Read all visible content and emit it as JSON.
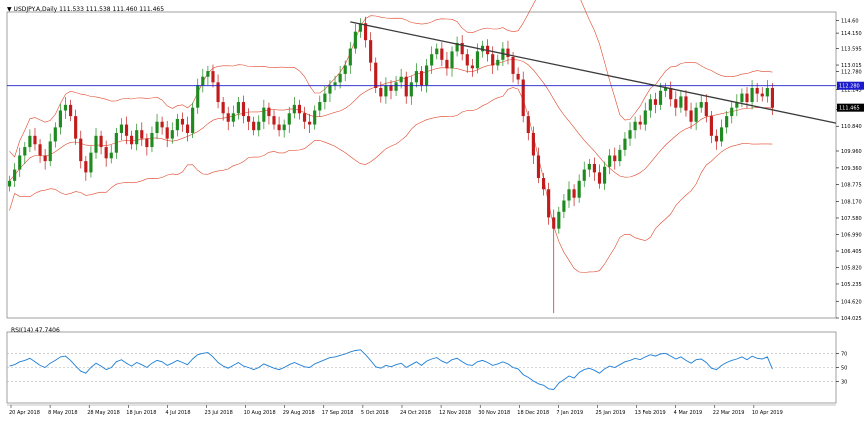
{
  "header": {
    "symbol_marker": "▼",
    "title": "USDJPY.A,Daily  111.533 111.538 111.460 111.465"
  },
  "colors": {
    "background": "#ffffff",
    "bull_candle": "#1f8a1f",
    "bear_candle": "#c11b1b",
    "bollinger": "#e0472a",
    "trendline": "#3b3b3b",
    "horizontal_line": "#1b1bcc",
    "rsi_line": "#1e7fd6",
    "grid": "#b0b0b0",
    "price_label_bg_current": "#000000",
    "price_label_bg_line": "#1b1bcc"
  },
  "chart_data": [
    {
      "type": "candlestick",
      "symbol": "USDJPY.A",
      "timeframe": "Daily",
      "ohlc_header": {
        "open": 111.533,
        "high": 111.538,
        "low": 111.46,
        "close": 111.465
      },
      "price_ticks": [
        "114.60",
        "114.150",
        "113.595",
        "113.015",
        "112.780",
        "112.145",
        "111.435",
        "110.840",
        "109.960",
        "109.360",
        "108.775",
        "108.170",
        "107.580",
        "106.990",
        "106.405",
        "105.820",
        "105.235",
        "104.620",
        "104.025"
      ],
      "price_tick_values": [
        114.6,
        114.15,
        113.595,
        113.015,
        112.78,
        112.145,
        111.435,
        110.84,
        109.96,
        109.36,
        108.775,
        108.17,
        107.58,
        106.99,
        106.405,
        105.82,
        105.235,
        104.62,
        104.025
      ],
      "ylim": [
        104.025,
        114.9
      ],
      "x_tick_labels": [
        "20 Apr 2018",
        "8 May 2018",
        "28 May 2018",
        "18 Jun 2018",
        "4 Jul 2018",
        "23 Jul 2018",
        "10 Aug 2018",
        "29 Aug 2018",
        "17 Sep 2018",
        "5 Oct 2018",
        "24 Oct 2018",
        "12 Nov 2018",
        "30 Nov 2018",
        "18 Dec 2018",
        "7 Jan 2019",
        "25 Jan 2019",
        "13 Feb 2019",
        "4 Mar 2019",
        "22 Mar 2019",
        "10 Apr 2019"
      ],
      "current_price_label": "111.465",
      "horizontal_line": {
        "price": 112.28,
        "label": "112.280"
      },
      "trendline": {
        "start": {
          "date": "28 Sep 2018",
          "price": 114.55
        },
        "end": {
          "date": "3 Jun 2019",
          "price": 110.95
        }
      },
      "closes": [
        108.9,
        109.3,
        109.8,
        110.1,
        110.5,
        110.2,
        109.8,
        109.6,
        110.3,
        110.8,
        111.4,
        111.6,
        111.2,
        110.4,
        109.6,
        109.2,
        109.9,
        110.5,
        110.1,
        109.7,
        109.9,
        110.6,
        110.9,
        110.5,
        110.2,
        110.7,
        110.4,
        110.1,
        110.6,
        111.0,
        110.8,
        110.4,
        110.7,
        111.1,
        110.9,
        110.6,
        111.5,
        112.3,
        112.6,
        112.8,
        112.4,
        111.7,
        111.3,
        111.0,
        111.3,
        111.7,
        111.2,
        111.0,
        110.7,
        111.0,
        111.5,
        111.2,
        110.9,
        110.7,
        110.9,
        111.3,
        111.6,
        111.3,
        111.0,
        110.9,
        111.4,
        111.7,
        112.0,
        112.3,
        112.4,
        112.7,
        113.0,
        113.6,
        114.2,
        114.5,
        113.9,
        113.1,
        112.2,
        111.9,
        112.3,
        112.1,
        112.4,
        112.6,
        111.9,
        112.4,
        112.8,
        112.3,
        113.0,
        113.4,
        113.6,
        113.2,
        112.9,
        113.5,
        113.8,
        113.4,
        113.0,
        112.9,
        113.5,
        113.7,
        113.4,
        113.0,
        113.2,
        113.6,
        113.3,
        112.7,
        112.5,
        111.2,
        110.6,
        109.8,
        109.0,
        108.6,
        107.6,
        107.2,
        107.8,
        108.2,
        108.6,
        108.3,
        108.9,
        109.3,
        109.5,
        109.2,
        108.8,
        109.4,
        109.8,
        109.6,
        110.0,
        110.4,
        110.7,
        111.0,
        110.9,
        111.4,
        111.8,
        111.6,
        112.1,
        112.2,
        111.8,
        111.5,
        111.9,
        111.4,
        111.0,
        111.5,
        111.7,
        111.2,
        110.5,
        110.3,
        110.8,
        111.2,
        111.5,
        111.7,
        112.0,
        111.7,
        112.2,
        112.0,
        111.9,
        112.2,
        111.5
      ]
    },
    {
      "type": "line",
      "indicator": "RSI(14)",
      "title": "RSI(14) 47.7406",
      "current_value": 47.7406,
      "levels": [
        70,
        50,
        30
      ],
      "level_labels": [
        "70",
        "50",
        "30"
      ],
      "ylim": [
        0,
        100
      ],
      "values": [
        52,
        54,
        58,
        60,
        63,
        58,
        53,
        50,
        56,
        60,
        65,
        66,
        60,
        52,
        45,
        42,
        50,
        56,
        52,
        47,
        50,
        58,
        61,
        56,
        52,
        57,
        54,
        50,
        56,
        60,
        58,
        53,
        56,
        60,
        57,
        54,
        62,
        68,
        70,
        71,
        65,
        57,
        52,
        49,
        53,
        57,
        52,
        50,
        47,
        50,
        55,
        52,
        49,
        47,
        50,
        54,
        57,
        54,
        51,
        50,
        55,
        58,
        61,
        64,
        65,
        67,
        69,
        72,
        74,
        75,
        68,
        60,
        51,
        49,
        53,
        51,
        54,
        56,
        50,
        54,
        58,
        53,
        59,
        62,
        64,
        59,
        56,
        61,
        63,
        58,
        54,
        53,
        58,
        60,
        57,
        53,
        55,
        58,
        55,
        50,
        48,
        40,
        36,
        31,
        27,
        25,
        20,
        19,
        28,
        33,
        38,
        35,
        43,
        47,
        49,
        46,
        42,
        48,
        52,
        50,
        54,
        58,
        60,
        63,
        61,
        65,
        68,
        66,
        69,
        70,
        66,
        62,
        65,
        60,
        56,
        61,
        62,
        57,
        49,
        47,
        53,
        57,
        60,
        62,
        65,
        61,
        66,
        63,
        62,
        65,
        47.7
      ]
    }
  ]
}
